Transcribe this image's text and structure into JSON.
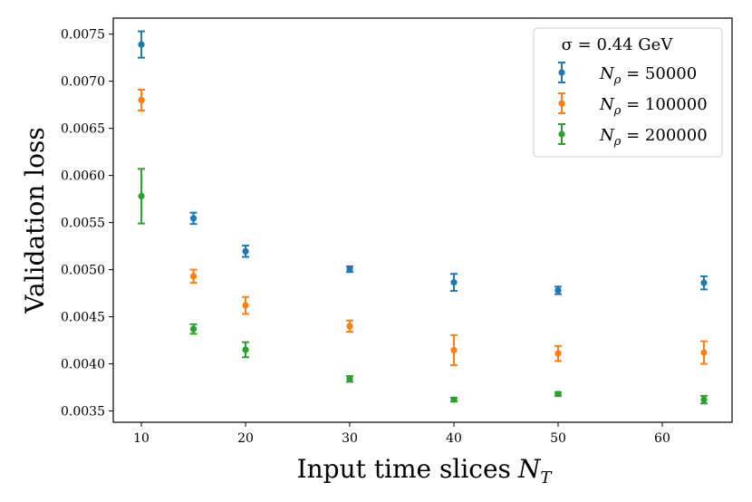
{
  "chart_data": {
    "type": "scatter",
    "title": "",
    "xlabel": "Input time slices",
    "xlabel_math": "N_T",
    "ylabel": "Validation loss",
    "xlim": [
      7.3,
      66.7
    ],
    "ylim": [
      0.00338,
      0.00767
    ],
    "x_ticks": [
      10,
      20,
      30,
      40,
      50,
      60
    ],
    "y_ticks": [
      0.0035,
      0.004,
      0.0045,
      0.005,
      0.0055,
      0.006,
      0.0065,
      0.007,
      0.0075
    ],
    "x_tick_labels": [
      "10",
      "20",
      "30",
      "40",
      "50",
      "60"
    ],
    "y_tick_labels": [
      "0.0035",
      "0.0040",
      "0.0045",
      "0.0050",
      "0.0055",
      "0.0060",
      "0.0065",
      "0.0070",
      "0.0075"
    ],
    "grid": false,
    "legend": {
      "title": "σ = 0.44 GeV",
      "position": "top-right"
    },
    "series": [
      {
        "name": "N_ρ = 50000",
        "label_prefix": "N",
        "label_sub": "ρ",
        "label_value": " = 50000",
        "color": "#1f77b4",
        "x": [
          10,
          15,
          20,
          30,
          40,
          50,
          64
        ],
        "y": [
          0.00739,
          0.005545,
          0.005195,
          0.005005,
          0.004865,
          0.00478,
          0.00486
        ],
        "err": [
          0.00014,
          6e-05,
          6e-05,
          3e-05,
          9e-05,
          4e-05,
          7e-05
        ]
      },
      {
        "name": "N_ρ = 100000",
        "label_prefix": "N",
        "label_sub": "ρ",
        "label_value": " = 100000",
        "color": "#ff7f0e",
        "x": [
          10,
          15,
          20,
          30,
          40,
          50,
          64
        ],
        "y": [
          0.0068,
          0.00493,
          0.00462,
          0.0044,
          0.004145,
          0.00411,
          0.00412
        ],
        "err": [
          0.00011,
          7e-05,
          9e-05,
          6e-05,
          0.00016,
          8e-05,
          0.00012
        ]
      },
      {
        "name": "N_ρ = 200000",
        "label_prefix": "N",
        "label_sub": "ρ",
        "label_value": " = 200000",
        "color": "#2ca02c",
        "x": [
          10,
          15,
          20,
          30,
          40,
          50,
          64
        ],
        "y": [
          0.00578,
          0.00437,
          0.00415,
          0.00384,
          0.00362,
          0.00368,
          0.00362
        ],
        "err": [
          0.00029,
          5e-05,
          8e-05,
          3e-05,
          2e-05,
          2e-05,
          4e-05
        ]
      }
    ]
  }
}
